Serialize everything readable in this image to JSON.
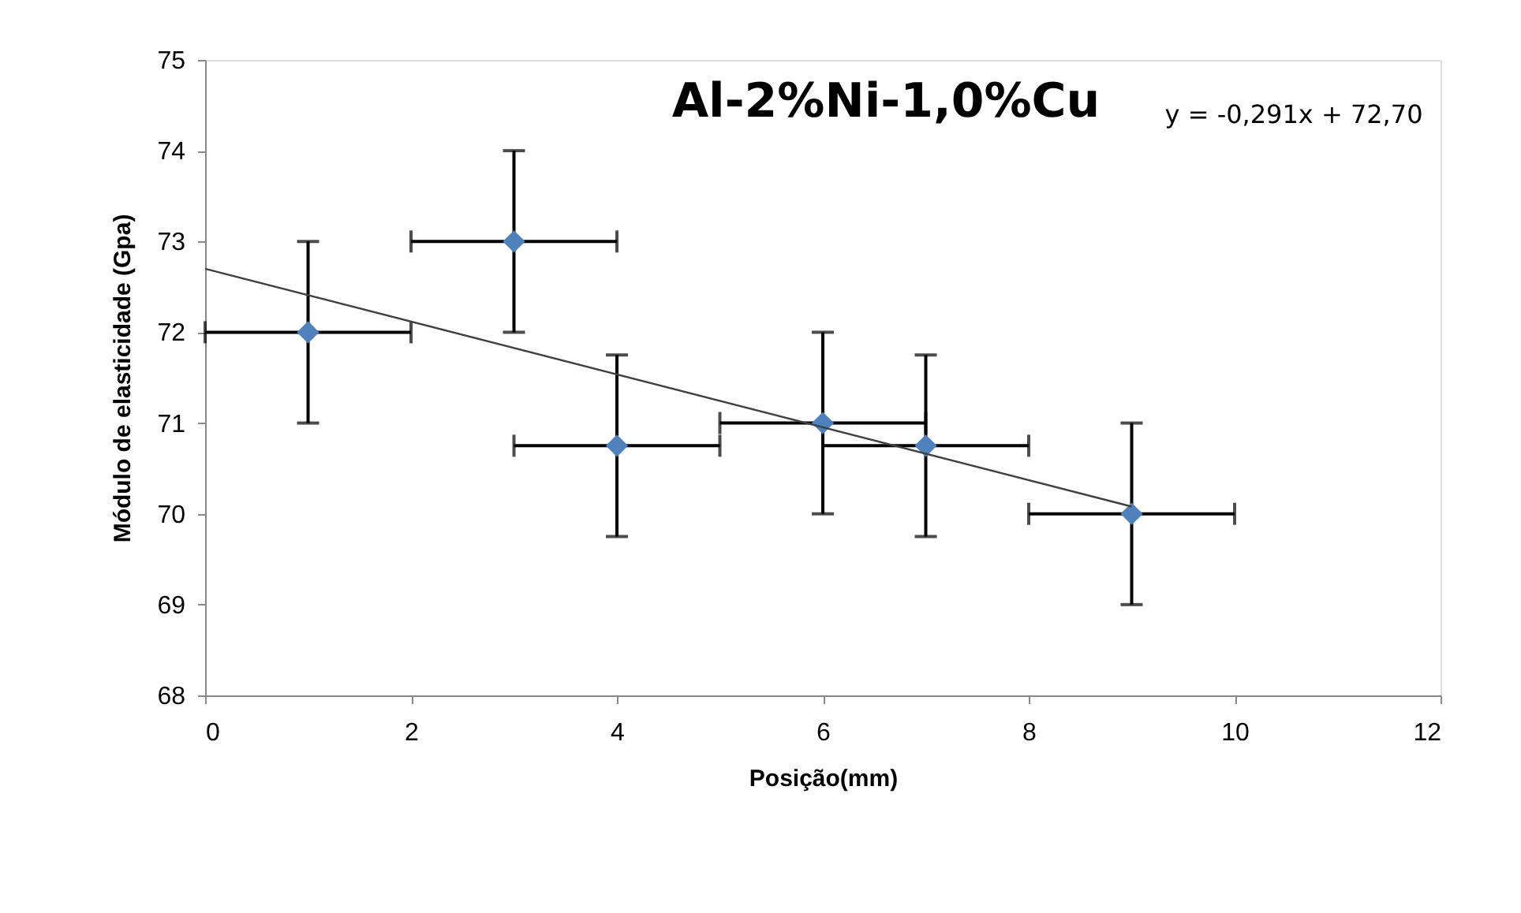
{
  "chart_data": {
    "type": "scatter",
    "title": "Al-2%Ni-1,0%Cu",
    "xlabel": "Posição(mm)",
    "ylabel": "Módulo de elasticidade (Gpa)",
    "series": [
      {
        "color": "#4f81bd",
        "x": [
          1,
          3,
          4,
          6,
          7,
          9
        ],
        "values": [
          72,
          73,
          70.75,
          71,
          70.75,
          70
        ],
        "errors": [
          1,
          1,
          1,
          1,
          1,
          1
        ],
        "xerrors": [
          1,
          1,
          1,
          1,
          1,
          1
        ],
        "marker": "diamond"
      },
      {
        "type": "line",
        "color": "#404040",
        "x": [
          0,
          9
        ],
        "values": [
          72.7,
          70.08
        ],
        "marker": "none",
        "line_style": "solid"
      }
    ],
    "annotations": [
      "y = -0,291x + 72,70"
    ],
    "xlim": [
      0,
      12
    ],
    "xticks": [
      0,
      2,
      4,
      6,
      8,
      10,
      12
    ],
    "ylim": [
      68,
      75
    ],
    "yticks": [
      68,
      69,
      70,
      71,
      72,
      73,
      74,
      75
    ],
    "grid": false
  }
}
